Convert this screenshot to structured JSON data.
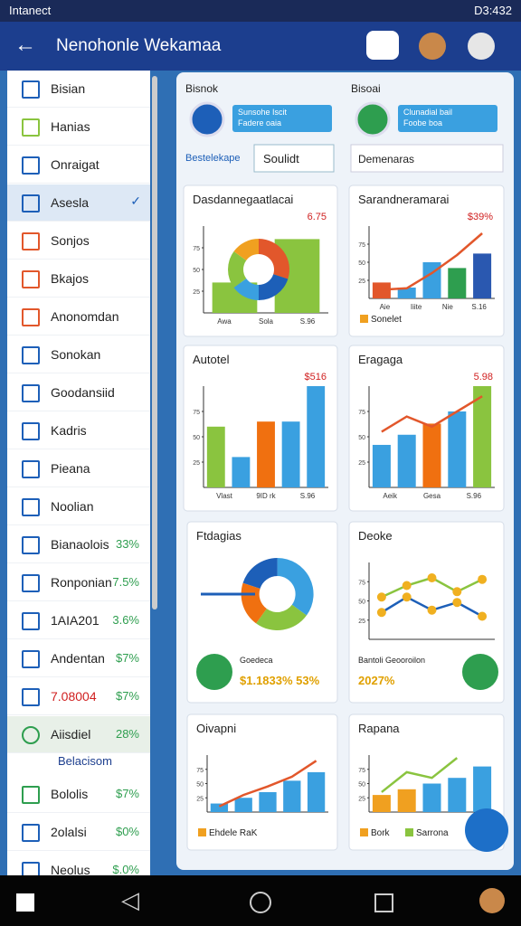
{
  "status_bar": {
    "carrier": "Intanect",
    "time": "D3:432"
  },
  "app_bar": {
    "title": "Nenohonle Wekamaa"
  },
  "sidebar": {
    "items": [
      {
        "label": "Bisian",
        "icon_color": "#1d5fb8"
      },
      {
        "label": "Hanias",
        "icon_color": "#8ac43f"
      },
      {
        "label": "Onraigat",
        "icon_color": "#1d5fb8"
      },
      {
        "label": "Asesla",
        "icon_color": "#1d5fb8",
        "selected": true
      },
      {
        "label": "Sonjos",
        "icon_color": "#e2572b"
      },
      {
        "label": "Bkajos",
        "icon_color": "#e2572b"
      },
      {
        "label": "Anonomdan",
        "icon_color": "#e2572b"
      },
      {
        "label": "Sonokan",
        "icon_color": "#1d5fb8"
      },
      {
        "label": "Goodansiid",
        "icon_color": "#1d5fb8"
      },
      {
        "label": "Kadris",
        "icon_color": "#1d5fb8"
      },
      {
        "label": "Pieana",
        "icon_color": "#1d5fb8"
      },
      {
        "label": "Noolian",
        "icon_color": "#1d5fb8"
      },
      {
        "label": "Bianaolois",
        "value": "33%",
        "icon_color": "#1d5fb8"
      },
      {
        "label": "Ronponian",
        "value": "7.5%",
        "icon_color": "#1d5fb8"
      },
      {
        "label": "1AIA201",
        "value": "3.6%",
        "icon_color": "#1d5fb8"
      },
      {
        "label": "Andentan",
        "value": "$7%",
        "icon_color": "#1d5fb8"
      },
      {
        "label": "7.08004",
        "value": "$7%",
        "icon_color": "#1d5fb8",
        "alert": true
      },
      {
        "label": "Aiisdiel",
        "value": "28%",
        "icon_color": "#2e9e4f",
        "highlight": true
      },
      {
        "section": "Belacisom"
      },
      {
        "label": "Bololis",
        "value": "$7%",
        "icon_color": "#2e9e4f"
      },
      {
        "label": "2olalsi",
        "value": "$0%",
        "icon_color": "#1d5fb8"
      },
      {
        "label": "Neolus",
        "value": "$.0%",
        "icon_color": "#1d5fb8"
      }
    ]
  },
  "panel": {
    "left": {
      "title": "Bisnok",
      "box_line1": "Sunsohe Iscit",
      "box_line2": "Fadere oaia",
      "filter": "Bestelekape",
      "dropdown": "Soulidt"
    },
    "right": {
      "title": "Bisoai",
      "box_line1": "Clunadial bail",
      "box_line2": "Foobe boa",
      "dropdown": "Demenaras"
    }
  },
  "cards": [
    {
      "type": "bar",
      "title": "Dasdannegaatlacai",
      "badge": "6.75",
      "ylim": [
        0,
        100
      ],
      "yticks": [
        75,
        50,
        25
      ],
      "x_labels": [
        "Awa",
        "Sola",
        "S.96"
      ],
      "bars": {
        "values": [
          35,
          85
        ],
        "colors": [
          "#8ac43f",
          "#8ac43f"
        ]
      },
      "donut": {
        "values": [
          30,
          20,
          15,
          20,
          15
        ],
        "colors": [
          "#e2572b",
          "#1d5fb8",
          "#3aa0e0",
          "#8ac43f",
          "#f0a020"
        ]
      }
    },
    {
      "type": "bar",
      "title": "Sarandneramarai",
      "badge": "$39%",
      "ylim": [
        0,
        100
      ],
      "yticks": [
        75,
        50,
        25
      ],
      "x_labels": [
        "Aie",
        "Iiite",
        "Nie",
        "S.16"
      ],
      "bars": {
        "values": [
          22,
          15,
          50,
          42,
          62
        ],
        "colors": [
          "#e2572b",
          "#3aa0e0",
          "#3aa0e0",
          "#2e9e4f",
          "#2a58b0"
        ]
      },
      "line": {
        "values": [
          12,
          14,
          35,
          60,
          90
        ],
        "color": "#e2572b"
      },
      "legend": [
        "Sonelet"
      ]
    },
    {
      "type": "bar",
      "title": "Autotel",
      "badge": "$516",
      "ylim": [
        0,
        100
      ],
      "yticks": [
        75,
        50,
        25
      ],
      "x_labels": [
        "Vlast",
        "9ID rk",
        "S.96"
      ],
      "bars": {
        "values": [
          60,
          30,
          65,
          65,
          100
        ],
        "colors": [
          "#8ac43f",
          "#3aa0e0",
          "#f07010",
          "#3aa0e0",
          "#3aa0e0"
        ]
      }
    },
    {
      "type": "bar",
      "title": "Eragaga",
      "badge": "5.98",
      "ylim": [
        0,
        100
      ],
      "yticks": [
        75,
        50,
        25
      ],
      "x_labels": [
        "Aeik",
        "Gesa",
        "S.96"
      ],
      "bars": {
        "values": [
          42,
          52,
          63,
          75,
          100
        ],
        "colors": [
          "#3aa0e0",
          "#3aa0e0",
          "#f07010",
          "#3aa0e0",
          "#8ac43f"
        ]
      },
      "line": {
        "values": [
          55,
          70,
          60,
          75,
          90
        ],
        "color": "#e2572b"
      }
    },
    {
      "type": "donut",
      "title": "Ftdagias",
      "caption1": "Goedeca",
      "caption2": "$1.1833% 53%",
      "donut": {
        "values": [
          35,
          25,
          20,
          20
        ],
        "colors": [
          "#3aa0e0",
          "#8ac43f",
          "#f07010",
          "#1d5fb8"
        ]
      }
    },
    {
      "type": "line",
      "title": "Deoke",
      "ylim": [
        0,
        100
      ],
      "yticks": [
        75,
        50,
        25
      ],
      "caption1": "Bantoli Geooroilon",
      "caption2": "2027%",
      "line": {
        "values": [
          55,
          70,
          80,
          62,
          78
        ],
        "color": "#8ac43f"
      },
      "line2": {
        "values": [
          35,
          55,
          38,
          48,
          30
        ],
        "color": "#1d5fb8"
      }
    },
    {
      "type": "bar",
      "title": "Oivapni",
      "ylim": [
        0,
        100
      ],
      "yticks": [
        75,
        50,
        25
      ],
      "bars": {
        "values": [
          15,
          25,
          35,
          55,
          70
        ],
        "colors": [
          "#3aa0e0",
          "#3aa0e0",
          "#3aa0e0",
          "#3aa0e0",
          "#3aa0e0"
        ]
      },
      "line": {
        "values": [
          10,
          30,
          45,
          62,
          90
        ],
        "color": "#e2572b"
      },
      "legend": [
        "Ehdele RaK"
      ]
    },
    {
      "type": "bar",
      "title": "Rapana",
      "ylim": [
        0,
        100
      ],
      "yticks": [
        75,
        50,
        25
      ],
      "bars": {
        "values": [
          30,
          40,
          50,
          60,
          80
        ],
        "colors": [
          "#f0a020",
          "#f0a020",
          "#3aa0e0",
          "#3aa0e0",
          "#3aa0e0"
        ]
      },
      "line": {
        "values": [
          35,
          70,
          60,
          95,
          null
        ],
        "color": "#8ac43f"
      },
      "legend": [
        "Bork",
        "Sarrona"
      ]
    }
  ]
}
